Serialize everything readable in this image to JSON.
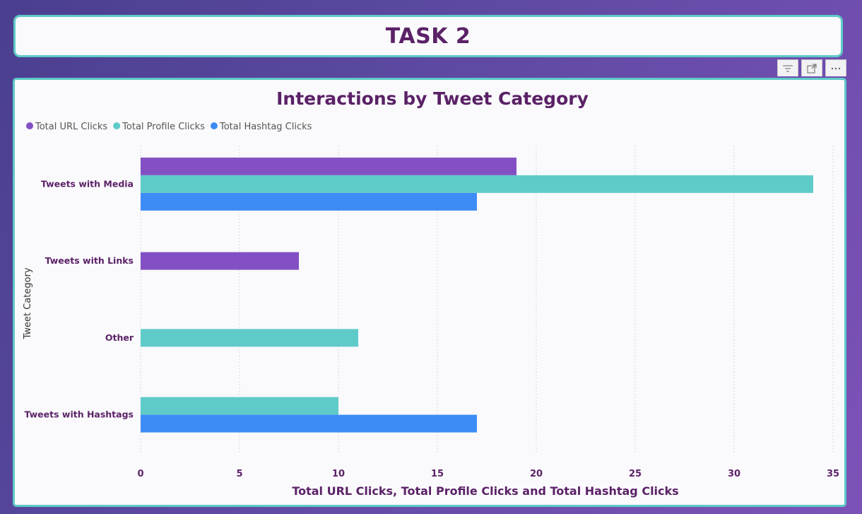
{
  "header": {
    "title": "TASK 2"
  },
  "visual_header": {
    "icons": [
      "filter-icon",
      "focus-mode-icon",
      "more-options-icon"
    ]
  },
  "chart_data": {
    "type": "bar",
    "orientation": "horizontal",
    "title": "Interactions by Tweet Category",
    "xlabel": "Total URL Clicks, Total Profile Clicks and Total Hashtag Clicks",
    "ylabel": "Tweet Category",
    "categories": [
      "Tweets with Media",
      "Tweets with Links",
      "Other",
      "Tweets with Hashtags"
    ],
    "series": [
      {
        "name": "Total URL Clicks",
        "color": "#8350c4",
        "values": [
          19,
          8,
          null,
          null
        ]
      },
      {
        "name": "Total Profile Clicks",
        "color": "#5ecbc8",
        "values": [
          34,
          null,
          11,
          10
        ]
      },
      {
        "name": "Total Hashtag Clicks",
        "color": "#3d8cf5",
        "values": [
          17,
          null,
          null,
          17
        ]
      }
    ],
    "xlim": [
      0,
      35
    ],
    "xticks": [
      0,
      5,
      10,
      15,
      20,
      25,
      30,
      35
    ],
    "grid": "vertical-dotted",
    "legend_position": "top-left"
  }
}
